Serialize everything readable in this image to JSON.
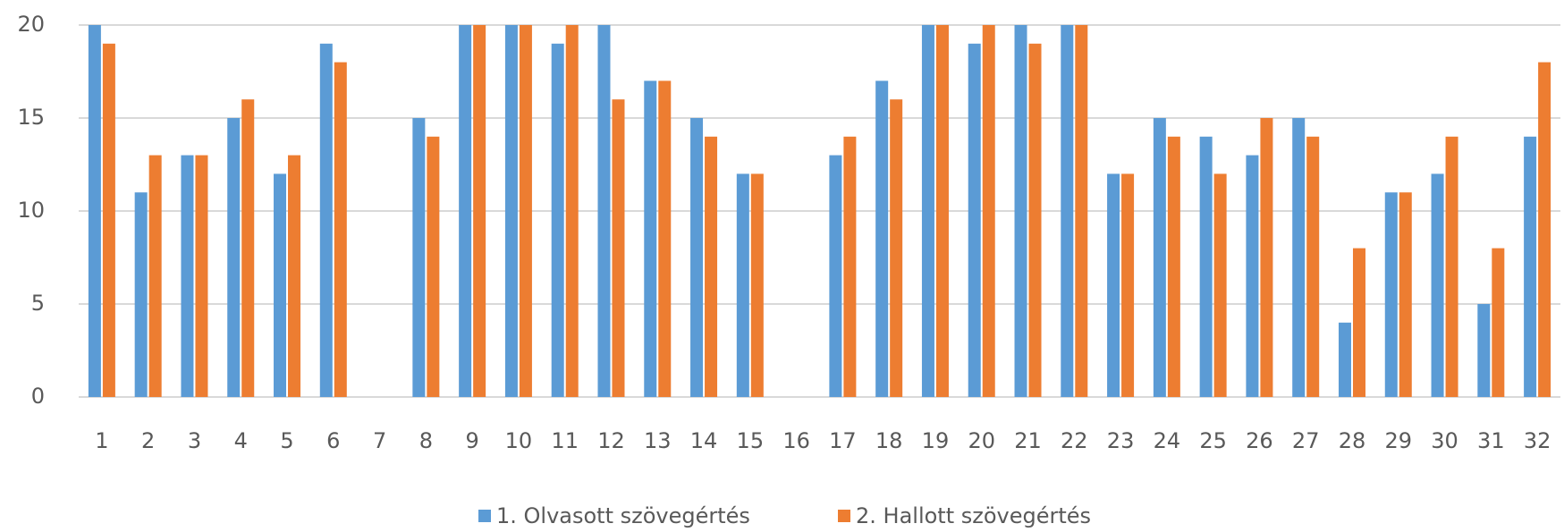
{
  "chart_data": {
    "type": "bar",
    "categories": [
      "1",
      "2",
      "3",
      "4",
      "5",
      "6",
      "7",
      "8",
      "9",
      "10",
      "11",
      "12",
      "13",
      "14",
      "15",
      "16",
      "17",
      "18",
      "19",
      "20",
      "21",
      "22",
      "23",
      "24",
      "25",
      "26",
      "27",
      "28",
      "29",
      "30",
      "31",
      "32"
    ],
    "series": [
      {
        "name": "1. Olvasott szövegértés",
        "color": "#5b9bd5",
        "values": [
          20,
          11,
          13,
          15,
          12,
          19,
          0,
          15,
          20,
          20,
          19,
          20,
          17,
          15,
          12,
          0,
          13,
          17,
          20,
          19,
          20,
          20,
          12,
          15,
          14,
          13,
          15,
          4,
          11,
          12,
          5,
          14
        ]
      },
      {
        "name": "2. Hallott szövegértés",
        "color": "#ed7d31",
        "values": [
          19,
          13,
          13,
          16,
          13,
          18,
          0,
          14,
          20,
          20,
          20,
          16,
          17,
          14,
          12,
          0,
          14,
          16,
          20,
          20,
          19,
          20,
          12,
          14,
          12,
          15,
          14,
          8,
          11,
          14,
          8,
          18
        ]
      }
    ],
    "ylim": [
      0,
      20
    ],
    "yticks": [
      0,
      5,
      10,
      15,
      20
    ],
    "grid": true,
    "legend": "bottom"
  }
}
